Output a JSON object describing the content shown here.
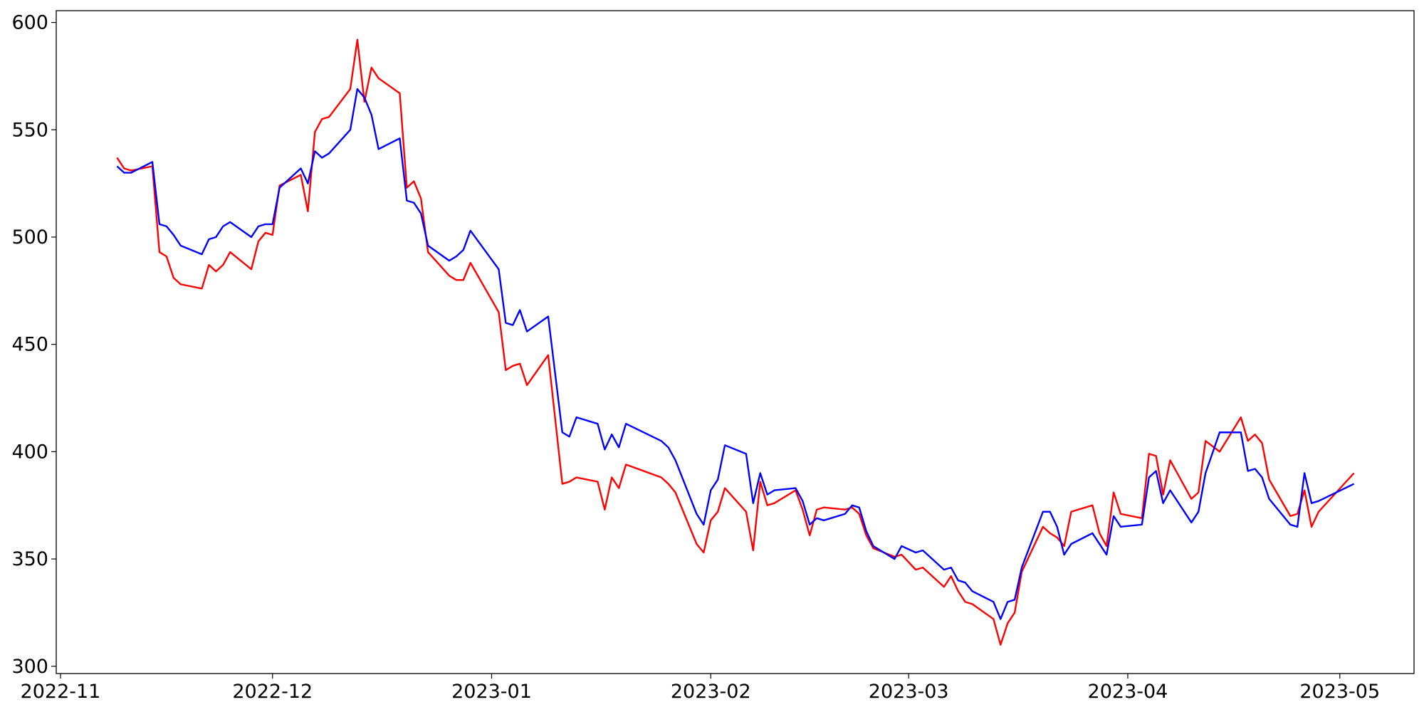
{
  "chart_data": {
    "type": "line",
    "x": [
      19305,
      19306,
      19307,
      19310,
      19311,
      19312,
      19313,
      19314,
      19317,
      19318,
      19319,
      19320,
      19321,
      19324,
      19325,
      19326,
      19327,
      19328,
      19331,
      19332,
      19333,
      19334,
      19335,
      19338,
      19339,
      19340,
      19341,
      19342,
      19345,
      19346,
      19347,
      19348,
      19349,
      19352,
      19353,
      19354,
      19355,
      19359,
      19360,
      19361,
      19362,
      19363,
      19366,
      19368,
      19369,
      19370,
      19373,
      19374,
      19375,
      19376,
      19377,
      19382,
      19383,
      19384,
      19387,
      19388,
      19389,
      19390,
      19391,
      19394,
      19395,
      19396,
      19397,
      19398,
      19401,
      19402,
      19403,
      19404,
      19405,
      19408,
      19409,
      19410,
      19411,
      19412,
      19415,
      19416,
      19418,
      19419,
      19422,
      19423,
      19424,
      19425,
      19426,
      19429,
      19430,
      19431,
      19432,
      19433,
      19436,
      19437,
      19438,
      19439,
      19440,
      19443,
      19444,
      19445,
      19446,
      19447,
      19450,
      19451,
      19452,
      19453,
      19454,
      19457,
      19458,
      19459,
      19461,
      19464,
      19465,
      19466,
      19467,
      19468,
      19471,
      19472,
      19473,
      19474,
      19475,
      19480
    ],
    "series": [
      {
        "color": "#ff0000",
        "values": [
          537,
          532,
          531,
          533,
          493,
          491,
          481,
          478,
          476,
          487,
          484,
          487,
          493,
          485,
          498,
          502,
          501,
          524,
          529,
          512,
          549,
          555,
          556,
          569,
          592,
          563,
          579,
          574,
          567,
          523,
          526,
          518,
          493,
          482,
          480,
          480,
          488,
          465,
          438,
          440,
          441,
          431,
          445,
          385,
          386,
          388,
          386,
          373,
          388,
          383,
          394,
          388,
          385,
          381,
          357,
          353,
          368,
          372,
          383,
          372,
          354,
          386,
          375,
          376,
          382,
          373,
          361,
          373,
          374,
          373,
          374,
          371,
          361,
          355,
          351,
          352,
          345,
          346,
          337,
          342,
          335,
          330,
          329,
          322,
          310,
          320,
          325,
          344,
          365,
          362,
          360,
          356,
          372,
          375,
          362,
          356,
          381,
          371,
          369,
          399,
          398,
          380,
          396,
          378,
          381,
          405,
          400,
          416,
          405,
          408,
          404,
          387,
          370,
          371,
          382,
          365,
          372,
          390
        ]
      },
      {
        "color": "#0000ff",
        "values": [
          533,
          530,
          530,
          535,
          506,
          505,
          501,
          496,
          492,
          499,
          500,
          505,
          507,
          500,
          505,
          506,
          506,
          523,
          532,
          525,
          540,
          537,
          539,
          550,
          569,
          565,
          557,
          541,
          546,
          517,
          516,
          511,
          496,
          489,
          491,
          494,
          503,
          485,
          460,
          459,
          466,
          456,
          463,
          409,
          407,
          416,
          413,
          401,
          408,
          402,
          413,
          405,
          402,
          396,
          371,
          366,
          382,
          387,
          403,
          399,
          376,
          390,
          380,
          382,
          383,
          377,
          366,
          369,
          368,
          371,
          375,
          374,
          363,
          356,
          350,
          356,
          353,
          354,
          345,
          346,
          340,
          339,
          335,
          330,
          322,
          330,
          331,
          346,
          372,
          372,
          365,
          352,
          357,
          362,
          357,
          352,
          370,
          365,
          366,
          388,
          391,
          376,
          382,
          367,
          372,
          390,
          409,
          409,
          391,
          392,
          388,
          378,
          366,
          365,
          390,
          376,
          377,
          385
        ]
      }
    ],
    "xlim": [
      19296.4,
      19488.5
    ],
    "xticks": [
      {
        "value": 19297,
        "label": "2022-11"
      },
      {
        "value": 19327,
        "label": "2022-12"
      },
      {
        "value": 19358,
        "label": "2023-01"
      },
      {
        "value": 19389,
        "label": "2023-02"
      },
      {
        "value": 19417,
        "label": "2023-03"
      },
      {
        "value": 19448,
        "label": "2023-04"
      },
      {
        "value": 19478,
        "label": "2023-05"
      }
    ],
    "ylim": [
      296.6,
      605.5
    ],
    "yticks": [
      300,
      350,
      400,
      450,
      500,
      550,
      600
    ],
    "grid": false
  }
}
